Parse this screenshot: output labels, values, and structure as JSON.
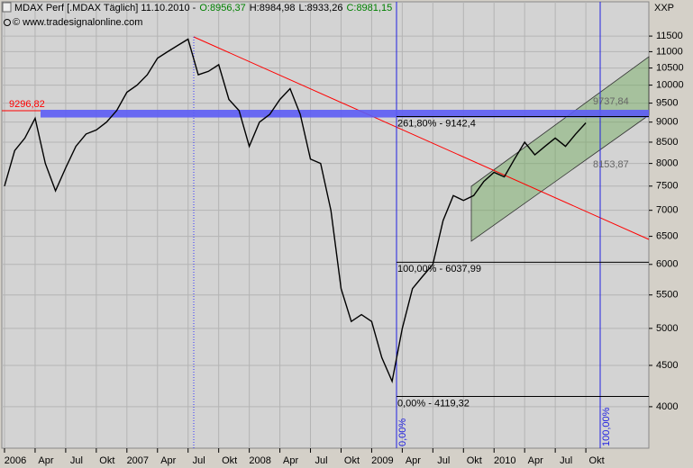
{
  "chart_data": {
    "type": "line",
    "title": "MDAX Perf [.MDAX  Täglich] 11.10.2010 -",
    "ohlc_labels": [
      "O:8956,37",
      "H:8984,98",
      "L:8933,26",
      "C:8981,15"
    ],
    "ohlc_colors": [
      "#008000",
      "#000000",
      "#000000",
      "#008000"
    ],
    "source": "© www.tradesignalonline.com",
    "unit": "XXP",
    "log_scale": true,
    "grid": true,
    "color": "#000000",
    "x": [
      "2006-01",
      "2006-02",
      "2006-03",
      "2006-04",
      "2006-05",
      "2006-06",
      "2006-07",
      "2006-08",
      "2006-09",
      "2006-10",
      "2006-11",
      "2006-12",
      "2007-01",
      "2007-02",
      "2007-03",
      "2007-04",
      "2007-05",
      "2007-06",
      "2007-07",
      "2007-08",
      "2007-09",
      "2007-10",
      "2007-11",
      "2007-12",
      "2008-01",
      "2008-02",
      "2008-03",
      "2008-04",
      "2008-05",
      "2008-06",
      "2008-07",
      "2008-08",
      "2008-09",
      "2008-10",
      "2008-11",
      "2008-12",
      "2009-01",
      "2009-02",
      "2009-03",
      "2009-04",
      "2009-05",
      "2009-06",
      "2009-07",
      "2009-08",
      "2009-09",
      "2009-10",
      "2009-11",
      "2009-12",
      "2010-01",
      "2010-02",
      "2010-03",
      "2010-04",
      "2010-05",
      "2010-06",
      "2010-07",
      "2010-08",
      "2010-09",
      "2010-10"
    ],
    "values": [
      7500,
      8300,
      8600,
      9100,
      8000,
      7400,
      7900,
      8400,
      8700,
      8800,
      9000,
      9300,
      9800,
      10000,
      10300,
      10800,
      11000,
      11200,
      11400,
      10300,
      10400,
      10600,
      9600,
      9300,
      8400,
      9000,
      9200,
      9600,
      9900,
      9200,
      8100,
      8000,
      7000,
      5600,
      5100,
      5200,
      5100,
      4600,
      4300,
      5000,
      5600,
      5800,
      6000,
      6800,
      7300,
      7200,
      7300,
      7600,
      7800,
      7700,
      8100,
      8500,
      8200,
      8400,
      8600,
      8400,
      8700,
      8981
    ],
    "xlim": [
      "2006-01",
      "2011-04"
    ],
    "xticks": [
      {
        "value": "2006-01",
        "label": "2006"
      },
      {
        "value": "2006-04",
        "label": "Apr"
      },
      {
        "value": "2006-07",
        "label": "Jul"
      },
      {
        "value": "2006-10",
        "label": "Okt"
      },
      {
        "value": "2007-01",
        "label": "2007"
      },
      {
        "value": "2007-04",
        "label": "Apr"
      },
      {
        "value": "2007-07",
        "label": "Jul"
      },
      {
        "value": "2007-10",
        "label": "Okt"
      },
      {
        "value": "2008-01",
        "label": "2008"
      },
      {
        "value": "2008-04",
        "label": "Apr"
      },
      {
        "value": "2008-07",
        "label": "Jul"
      },
      {
        "value": "2008-10",
        "label": "Okt"
      },
      {
        "value": "2009-01",
        "label": "2009"
      },
      {
        "value": "2009-04",
        "label": "Apr"
      },
      {
        "value": "2009-07",
        "label": "Jul"
      },
      {
        "value": "2009-10",
        "label": "Okt"
      },
      {
        "value": "2010-01",
        "label": "2010"
      },
      {
        "value": "2010-04",
        "label": "Apr"
      },
      {
        "value": "2010-07",
        "label": "Jul"
      },
      {
        "value": "2010-10",
        "label": "Okt"
      }
    ],
    "ylim": [
      3554,
      12680
    ],
    "yticks": [
      4000,
      4500,
      5000,
      5500,
      6000,
      6500,
      7000,
      7500,
      8000,
      8500,
      9000,
      9500,
      10000,
      10500,
      11000,
      11500
    ],
    "levels": [
      {
        "value": 9296.82,
        "label": "9296,82",
        "color": "#ff0000"
      },
      {
        "value": 9142.4,
        "label": "261,80% - 9142,4",
        "color": "#000000"
      },
      {
        "value": 6037.99,
        "label": "100,00% - 6037,99",
        "color": "#000000"
      },
      {
        "value": 4119.32,
        "label": "0,00% - 4119,32",
        "color": "#000000"
      }
    ],
    "band_color": "#5c5cf5",
    "channel_labels": [
      "9737,84",
      "8153,87"
    ],
    "fib_time_labels": [
      "0,00%",
      "100,00%"
    ]
  }
}
